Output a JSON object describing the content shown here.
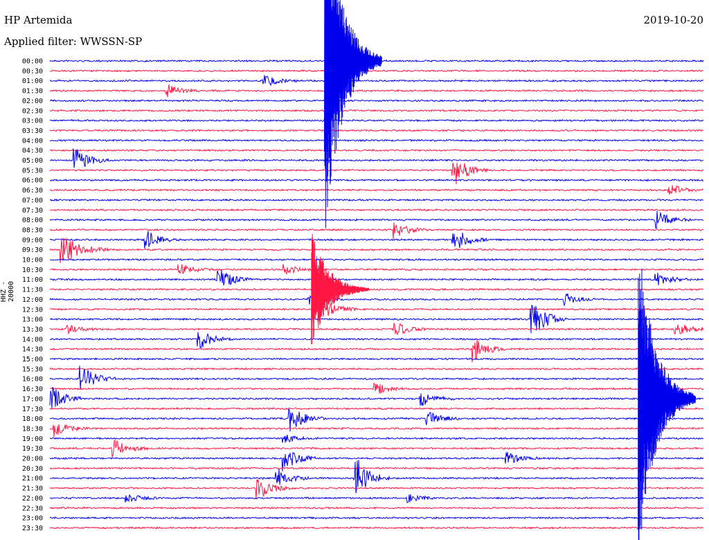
{
  "header": {
    "station": "HP Artemida",
    "date": "2019-10-20",
    "filter": "Applied filter: WWSSN-SP",
    "channel": "HHZ - 20000"
  },
  "colors": {
    "even_trace": "#0000ee",
    "odd_trace": "#ff1744",
    "background": "#ffffff"
  },
  "chart_data": {
    "type": "helicorder",
    "title": "HP Artemida",
    "date": "2019-10-20",
    "filter": "WWSSN-SP",
    "channel": "HHZ - 20000",
    "row_minutes": 30,
    "rows": [
      "00:00",
      "00:30",
      "01:00",
      "01:30",
      "02:00",
      "02:30",
      "03:00",
      "03:30",
      "04:00",
      "04:30",
      "05:00",
      "05:30",
      "06:00",
      "06:30",
      "07:00",
      "07:30",
      "08:00",
      "08:30",
      "09:00",
      "09:30",
      "10:00",
      "10:30",
      "11:00",
      "11:30",
      "12:00",
      "12:30",
      "13:00",
      "13:30",
      "14:00",
      "14:30",
      "15:00",
      "15:30",
      "16:00",
      "16:30",
      "17:00",
      "17:30",
      "18:00",
      "18:30",
      "19:00",
      "19:30",
      "20:00",
      "20:30",
      "21:00",
      "21:30",
      "22:00",
      "22:30",
      "23:00",
      "23:30"
    ],
    "events": [
      {
        "row": 2,
        "t": 0.33,
        "amp": 8
      },
      {
        "row": 3,
        "t": 0.18,
        "amp": 9
      },
      {
        "row": 0,
        "t": 0.42,
        "amp": 90,
        "dur": 0.08,
        "big": true
      },
      {
        "row": 10,
        "t": 0.04,
        "amp": 18
      },
      {
        "row": 11,
        "t": 0.62,
        "amp": 22
      },
      {
        "row": 13,
        "t": 0.95,
        "amp": 8
      },
      {
        "row": 16,
        "t": 0.93,
        "amp": 14
      },
      {
        "row": 17,
        "t": 0.53,
        "amp": 12
      },
      {
        "row": 18,
        "t": 0.15,
        "amp": 12
      },
      {
        "row": 18,
        "t": 0.62,
        "amp": 22
      },
      {
        "row": 19,
        "t": 0.02,
        "amp": 22,
        "dur": 0.07
      },
      {
        "row": 21,
        "t": 0.2,
        "amp": 8
      },
      {
        "row": 21,
        "t": 0.36,
        "amp": 8
      },
      {
        "row": 22,
        "t": 0.26,
        "amp": 16
      },
      {
        "row": 22,
        "t": 0.93,
        "amp": 10
      },
      {
        "row": 23,
        "t": 0.4,
        "amp": 30,
        "big": true
      },
      {
        "row": 24,
        "t": 0.4,
        "amp": 8
      },
      {
        "row": 24,
        "t": 0.79,
        "amp": 8
      },
      {
        "row": 25,
        "t": 0.42,
        "amp": 18
      },
      {
        "row": 26,
        "t": 0.74,
        "amp": 28
      },
      {
        "row": 27,
        "t": 0.03,
        "amp": 6
      },
      {
        "row": 27,
        "t": 0.53,
        "amp": 10
      },
      {
        "row": 27,
        "t": 0.96,
        "amp": 10
      },
      {
        "row": 28,
        "t": 0.23,
        "amp": 14
      },
      {
        "row": 29,
        "t": 0.65,
        "amp": 18
      },
      {
        "row": 32,
        "t": 0.05,
        "amp": 20
      },
      {
        "row": 33,
        "t": 0.5,
        "amp": 8
      },
      {
        "row": 34,
        "t": 0.0,
        "amp": 22
      },
      {
        "row": 34,
        "t": 0.57,
        "amp": 10
      },
      {
        "row": 34,
        "t": 0.9,
        "amp": 80,
        "big": true
      },
      {
        "row": 36,
        "t": 0.37,
        "amp": 18
      },
      {
        "row": 36,
        "t": 0.58,
        "amp": 10
      },
      {
        "row": 37,
        "t": 0.01,
        "amp": 12
      },
      {
        "row": 38,
        "t": 0.36,
        "amp": 6
      },
      {
        "row": 39,
        "t": 0.1,
        "amp": 14
      },
      {
        "row": 40,
        "t": 0.36,
        "amp": 20
      },
      {
        "row": 40,
        "t": 0.7,
        "amp": 10
      },
      {
        "row": 42,
        "t": 0.35,
        "amp": 14
      },
      {
        "row": 42,
        "t": 0.47,
        "amp": 30
      },
      {
        "row": 43,
        "t": 0.32,
        "amp": 16
      },
      {
        "row": 44,
        "t": 0.12,
        "amp": 6
      },
      {
        "row": 44,
        "t": 0.55,
        "amp": 6
      }
    ]
  }
}
